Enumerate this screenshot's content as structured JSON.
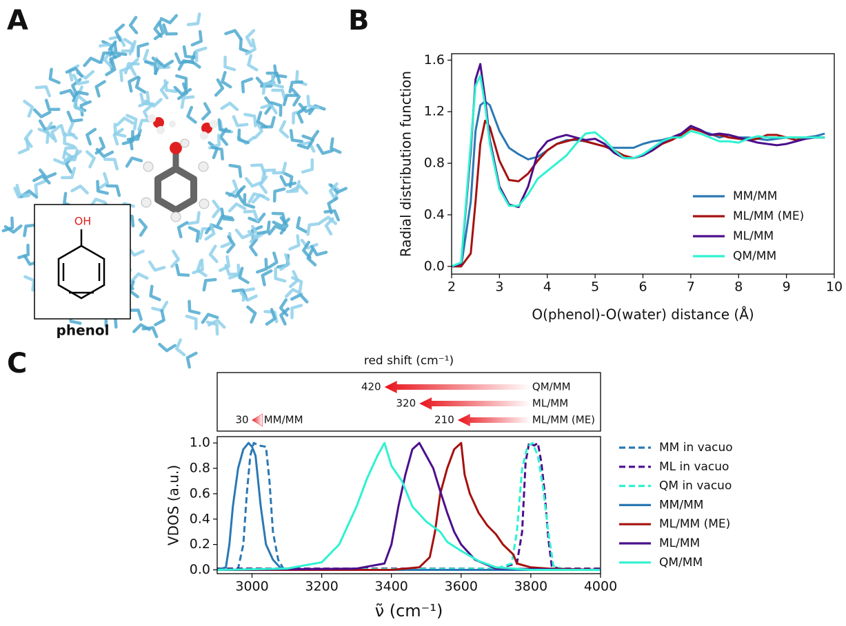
{
  "panel_labels": [
    "A",
    "B",
    "C"
  ],
  "molecule": {
    "group": "OH",
    "label": "phenol"
  },
  "chart_data": [
    {
      "type": "line",
      "x_label": "O(phenol)-O(water) distance (Å)",
      "y_label": "Radial distribution function",
      "xlim": [
        2,
        10
      ],
      "ylim": [
        -0.06,
        1.65
      ],
      "xticks": [
        2,
        3,
        4,
        5,
        6,
        7,
        8,
        9,
        10
      ],
      "yticks": [
        {
          "value": 0,
          "label": "0.0"
        },
        0.4,
        0.8,
        1.2,
        1.6
      ],
      "legend": "lower right",
      "x": [
        2.0,
        2.2,
        2.4,
        2.5,
        2.6,
        2.7,
        2.8,
        3.0,
        3.2,
        3.4,
        3.6,
        3.8,
        4.0,
        4.2,
        4.4,
        4.6,
        4.8,
        5.0,
        5.2,
        5.4,
        5.6,
        5.8,
        6.0,
        6.2,
        6.4,
        6.6,
        6.8,
        7.0,
        7.2,
        7.4,
        7.6,
        7.8,
        8.0,
        8.2,
        8.4,
        8.6,
        8.8,
        9.0,
        9.2,
        9.4,
        9.6,
        9.8
      ],
      "series": [
        {
          "name": "MM/MM",
          "color": "#2a78b4",
          "values": [
            0,
            0,
            0.5,
            1.05,
            1.25,
            1.28,
            1.25,
            1.05,
            0.92,
            0.87,
            0.83,
            0.85,
            0.9,
            0.95,
            0.98,
            0.98,
            0.97,
            0.95,
            0.93,
            0.92,
            0.92,
            0.92,
            0.95,
            0.97,
            0.98,
            1.0,
            1.03,
            1.08,
            1.05,
            1.03,
            1.0,
            1.02,
            1.0,
            1.0,
            0.99,
            0.98,
            0.99,
            1.0,
            1.0,
            1.0,
            1.01,
            1.03
          ]
        },
        {
          "name": "ML/MM (ME)",
          "color": "#a5110f",
          "values": [
            0,
            0,
            0.1,
            0.5,
            0.95,
            1.13,
            1.08,
            0.82,
            0.67,
            0.66,
            0.72,
            0.82,
            0.9,
            0.95,
            0.97,
            0.99,
            0.97,
            0.95,
            0.93,
            0.9,
            0.86,
            0.84,
            0.86,
            0.9,
            0.95,
            0.98,
            1.02,
            1.07,
            1.05,
            1.02,
            1.02,
            1.0,
            0.99,
            0.98,
            0.99,
            1.02,
            1.02,
            1.0,
            0.98,
            1.0,
            1.0,
            1.0
          ]
        },
        {
          "name": "ML/MM",
          "color": "#4b0f8c",
          "values": [
            0,
            0.02,
            0.9,
            1.45,
            1.57,
            1.3,
            0.98,
            0.62,
            0.48,
            0.46,
            0.62,
            0.88,
            0.97,
            1.0,
            1.02,
            1.0,
            0.98,
            0.99,
            0.95,
            0.88,
            0.84,
            0.84,
            0.86,
            0.9,
            0.96,
            1.0,
            1.03,
            1.09,
            1.06,
            1.02,
            1.03,
            1.02,
            1.0,
            0.98,
            0.96,
            0.95,
            0.94,
            0.95,
            0.97,
            0.99,
            1.0,
            1.0
          ]
        },
        {
          "name": "QM/MM",
          "color": "#2ef2d0",
          "values": [
            0,
            0.03,
            0.95,
            1.4,
            1.48,
            1.25,
            0.95,
            0.6,
            0.47,
            0.47,
            0.56,
            0.68,
            0.74,
            0.8,
            0.86,
            0.95,
            1.03,
            1.04,
            0.98,
            0.9,
            0.84,
            0.84,
            0.87,
            0.92,
            0.97,
            1.0,
            1.0,
            1.05,
            1.03,
            1.0,
            0.97,
            0.97,
            0.96,
            0.99,
            1.01,
            1.0,
            1.0,
            1.0,
            1.0,
            1.0,
            1.0,
            1.0
          ]
        }
      ]
    },
    {
      "type": "arrow",
      "title": "red shift (cm⁻¹)",
      "xlim": [
        2900,
        4000
      ],
      "color": "#e8141c",
      "categories": [
        "QM/MM",
        "ML/MM",
        "ML/MM (ME)",
        "MM/MM"
      ],
      "values": [
        420,
        320,
        210,
        30
      ],
      "start": [
        3800,
        3800,
        3800,
        3030
      ]
    },
    {
      "type": "line",
      "x_label": "ν̃ (cm⁻¹)",
      "y_label": "VDOS (a.u.)",
      "xlim": [
        2900,
        4000
      ],
      "ylim": [
        -0.03,
        1.05
      ],
      "xticks": [
        3000,
        3200,
        3400,
        3600,
        3800,
        4000
      ],
      "yticks": [
        {
          "value": 0,
          "label": "0.0"
        },
        0.2,
        0.4,
        0.6,
        0.8,
        {
          "value": 1,
          "label": "1.0"
        }
      ],
      "legend": "outside right",
      "series": [
        {
          "name": "MM in vacuo",
          "color": "#2a78b4",
          "dashed": true,
          "x": [
            2900,
            2960,
            2975,
            2985,
            2995,
            3005,
            3020,
            3040,
            3050,
            3060,
            3075,
            3090,
            3120,
            4000
          ],
          "values": [
            0,
            0.01,
            0.2,
            0.6,
            0.9,
            1.0,
            0.98,
            0.97,
            0.7,
            0.3,
            0.08,
            0.01,
            0,
            0
          ]
        },
        {
          "name": "ML in vacuo",
          "color": "#4b0f8c",
          "dashed": true,
          "x": [
            2900,
            3700,
            3760,
            3775,
            3785,
            3795,
            3810,
            3820,
            3830,
            3840,
            3850,
            3860,
            3880,
            4000
          ],
          "values": [
            0.01,
            0.01,
            0.05,
            0.3,
            0.85,
            1.0,
            0.98,
            1.0,
            0.85,
            0.6,
            0.25,
            0.03,
            0.01,
            0.01
          ]
        },
        {
          "name": "QM in vacuo",
          "color": "#2ef2d0",
          "dashed": true,
          "x": [
            2900,
            3700,
            3745,
            3760,
            3775,
            3790,
            3805,
            3820,
            3835,
            3850,
            3865,
            3900,
            4000
          ],
          "values": [
            0,
            0.01,
            0.05,
            0.3,
            0.8,
            0.97,
            1.0,
            0.9,
            0.65,
            0.3,
            0.03,
            0,
            0
          ]
        },
        {
          "name": "MM/MM",
          "color": "#2a78b4",
          "x": [
            2900,
            2925,
            2935,
            2945,
            2960,
            2975,
            2990,
            3000,
            3010,
            3025,
            3040,
            3060,
            3080,
            3100,
            4000
          ],
          "values": [
            0,
            0.02,
            0.2,
            0.5,
            0.8,
            0.95,
            1.0,
            0.97,
            0.9,
            0.5,
            0.2,
            0.08,
            0.02,
            0,
            0
          ]
        },
        {
          "name": "ML/MM (ME)",
          "color": "#a5110f",
          "x": [
            2900,
            3400,
            3480,
            3510,
            3525,
            3540,
            3560,
            3580,
            3600,
            3610,
            3625,
            3650,
            3675,
            3700,
            3720,
            3750,
            3760,
            3800,
            3850,
            4000
          ],
          "values": [
            0,
            0,
            0.02,
            0.1,
            0.3,
            0.6,
            0.8,
            0.95,
            1.0,
            0.75,
            0.6,
            0.45,
            0.35,
            0.28,
            0.2,
            0.12,
            0.05,
            0.02,
            0.01,
            0
          ]
        },
        {
          "name": "ML/MM",
          "color": "#4b0f8c",
          "x": [
            2900,
            3300,
            3380,
            3400,
            3420,
            3440,
            3460,
            3480,
            3500,
            3520,
            3540,
            3560,
            3580,
            3600,
            3640,
            3700,
            4000
          ],
          "values": [
            0,
            0.01,
            0.05,
            0.2,
            0.5,
            0.75,
            0.95,
            1.0,
            0.9,
            0.8,
            0.62,
            0.45,
            0.3,
            0.2,
            0.08,
            0.01,
            0
          ]
        },
        {
          "name": "QM/MM",
          "color": "#2ef2d0",
          "x": [
            2900,
            3100,
            3200,
            3250,
            3300,
            3330,
            3360,
            3380,
            3400,
            3430,
            3460,
            3500,
            3540,
            3560,
            3600,
            3650,
            3700,
            3750,
            3800,
            4000
          ],
          "values": [
            0,
            0.01,
            0.06,
            0.2,
            0.5,
            0.72,
            0.9,
            1.0,
            0.82,
            0.7,
            0.5,
            0.38,
            0.3,
            0.22,
            0.15,
            0.07,
            0.02,
            0.01,
            0,
            0
          ]
        }
      ]
    }
  ]
}
